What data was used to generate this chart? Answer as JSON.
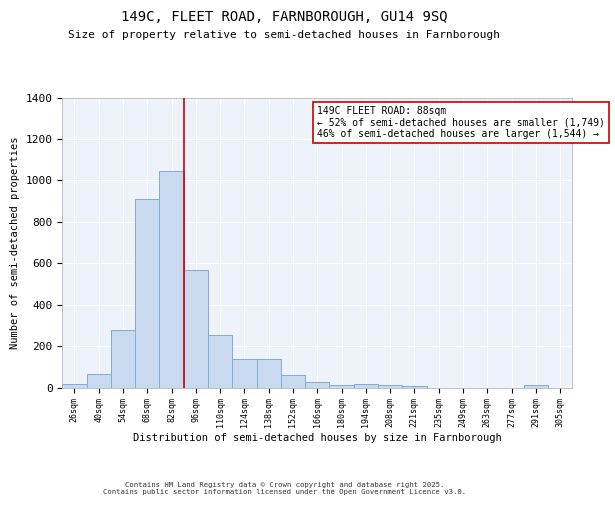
{
  "title1": "149C, FLEET ROAD, FARNBOROUGH, GU14 9SQ",
  "title2": "Size of property relative to semi-detached houses in Farnborough",
  "xlabel": "Distribution of semi-detached houses by size in Farnborough",
  "ylabel": "Number of semi-detached properties",
  "bar_color": "#c9d9f0",
  "bar_edge_color": "#7facd6",
  "background_color": "#eef2fb",
  "grid_color": "#ffffff",
  "bins": [
    "26sqm",
    "40sqm",
    "54sqm",
    "68sqm",
    "82sqm",
    "96sqm",
    "110sqm",
    "124sqm",
    "138sqm",
    "152sqm",
    "166sqm",
    "180sqm",
    "194sqm",
    "208sqm",
    "221sqm",
    "235sqm",
    "249sqm",
    "263sqm",
    "277sqm",
    "291sqm",
    "305sqm"
  ],
  "values": [
    15,
    65,
    280,
    910,
    1045,
    565,
    255,
    140,
    140,
    60,
    25,
    10,
    15,
    10,
    5,
    0,
    0,
    0,
    0,
    10,
    0
  ],
  "vline_x": 4.5,
  "annotation_text": "149C FLEET ROAD: 88sqm\n← 52% of semi-detached houses are smaller (1,749)\n46% of semi-detached houses are larger (1,544) →",
  "annotation_box_color": "#ffffff",
  "annotation_box_edge": "#cc0000",
  "vline_color": "#cc0000",
  "ylim": [
    0,
    1400
  ],
  "yticks": [
    0,
    200,
    400,
    600,
    800,
    1000,
    1200,
    1400
  ],
  "footer1": "Contains HM Land Registry data © Crown copyright and database right 2025.",
  "footer2": "Contains public sector information licensed under the Open Government Licence v3.0."
}
